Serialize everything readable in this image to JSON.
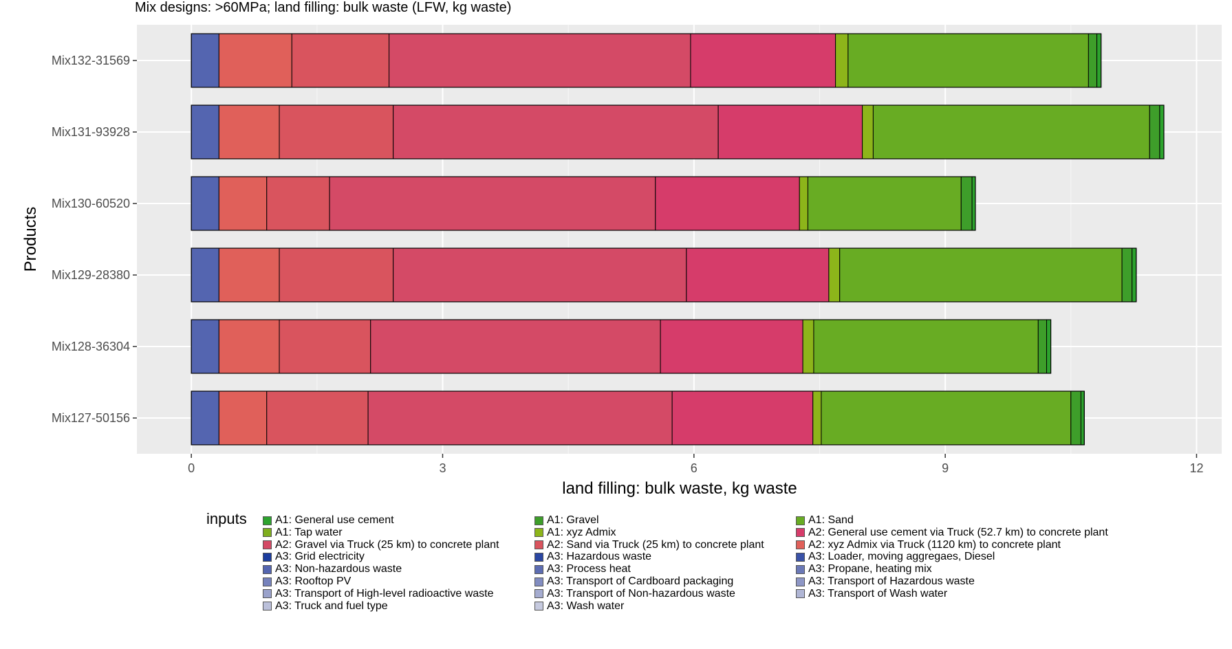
{
  "chart_data": {
    "type": "bar",
    "orientation": "horizontal",
    "stacked": true,
    "title": "Mix designs: >60MPa; land filling: bulk waste (LFW, kg waste)",
    "xlabel": "land filling: bulk waste, kg waste",
    "ylabel": "Products",
    "xlim": [
      -0.65,
      12.3
    ],
    "xticks": [
      0,
      3,
      6,
      9,
      12
    ],
    "grid": true,
    "legend_title": "inputs",
    "legend_position": "bottom",
    "categories": [
      "Mix132-31569",
      "Mix131-93928",
      "Mix130-60520",
      "Mix129-28380",
      "Mix128-36304",
      "Mix127-50156"
    ],
    "series": [
      {
        "name": "A3: Non-hazardous waste",
        "color": "#5465B0",
        "values": [
          0.33,
          0.33,
          0.33,
          0.33,
          0.33,
          0.33
        ]
      },
      {
        "name": "A2: xyz Admix via Truck (1120 km) to concrete plant",
        "color": "#E0605A",
        "values": [
          0.87,
          0.72,
          0.57,
          0.72,
          0.72,
          0.57
        ]
      },
      {
        "name": "A2: Sand via Truck (25 km) to concrete plant",
        "color": "#D9545E",
        "values": [
          1.16,
          1.36,
          0.75,
          1.36,
          1.09,
          1.21
        ]
      },
      {
        "name": "A2: Gravel via Truck (25 km) to concrete plant",
        "color": "#D44A66",
        "values": [
          3.6,
          3.88,
          3.89,
          3.5,
          3.46,
          3.63
        ]
      },
      {
        "name": "A2: General use cement via Truck (52.7 km) to concrete plant",
        "color": "#D63C6A",
        "values": [
          1.73,
          1.72,
          1.72,
          1.7,
          1.7,
          1.68
        ]
      },
      {
        "name": "A1: xyz Admix",
        "color": "#8DB51A",
        "values": [
          0.15,
          0.13,
          0.1,
          0.13,
          0.13,
          0.1
        ]
      },
      {
        "name": "A1: Sand",
        "color": "#68AC23",
        "values": [
          2.87,
          3.3,
          1.83,
          3.37,
          2.68,
          2.98
        ]
      },
      {
        "name": "A1: Gravel",
        "color": "#3E9E2A",
        "values": [
          0.1,
          0.12,
          0.13,
          0.12,
          0.1,
          0.12
        ]
      },
      {
        "name": "A1: General use cement",
        "color": "#2DA32E",
        "values": [
          0.05,
          0.05,
          0.04,
          0.05,
          0.05,
          0.04
        ]
      }
    ]
  },
  "legend_items": [
    {
      "label": "A1: General use cement",
      "color": "#2DA32E"
    },
    {
      "label": "A1: Gravel",
      "color": "#3E9E2A"
    },
    {
      "label": "A1: Sand",
      "color": "#68AC23"
    },
    {
      "label": "A1: Tap water",
      "color": "#7FAE1E"
    },
    {
      "label": "A1: xyz Admix",
      "color": "#8DB51A"
    },
    {
      "label": "A2: General use cement via Truck (52.7 km) to concrete plant",
      "color": "#D63C6A"
    },
    {
      "label": "A2: Gravel via Truck (25 km) to concrete plant",
      "color": "#D44A66"
    },
    {
      "label": "A2: Sand via Truck (25 km) to concrete plant",
      "color": "#D9545E"
    },
    {
      "label": "A2: xyz Admix via Truck (1120 km) to concrete plant",
      "color": "#E0605A"
    },
    {
      "label": "A3: Grid electricity",
      "color": "#1B3C9E"
    },
    {
      "label": "A3: Hazardous waste",
      "color": "#2A46A2"
    },
    {
      "label": "A3: Loader, moving aggregaes, Diesel",
      "color": "#3A52A8"
    },
    {
      "label": "A3: Non-hazardous waste",
      "color": "#5465B0"
    },
    {
      "label": "A3: Process heat",
      "color": "#5D6DB2"
    },
    {
      "label": "A3: Propane, heating mix",
      "color": "#6B79B7"
    },
    {
      "label": "A3: Rooftop PV",
      "color": "#7682BC"
    },
    {
      "label": "A3: Transport of Cardboard packaging",
      "color": "#828DC1"
    },
    {
      "label": "A3: Transport of Hazardous waste",
      "color": "#8E97C6"
    },
    {
      "label": "A3: Transport of High-level radioactive waste",
      "color": "#9AA2CB"
    },
    {
      "label": "A3: Transport of Non-hazardous waste",
      "color": "#A5ACD0"
    },
    {
      "label": "A3: Transport of Wash water",
      "color": "#B0B6D5"
    },
    {
      "label": "A3: Truck and fuel type",
      "color": "#BBC0DA"
    },
    {
      "label": "A3: Wash water",
      "color": "#C6CADF"
    }
  ]
}
